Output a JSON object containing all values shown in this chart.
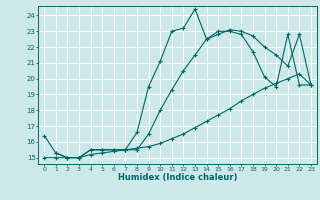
{
  "xlabel": "Humidex (Indice chaleur)",
  "bg_color": "#cce8e8",
  "grid_color": "#ffffff",
  "line_color": "#006666",
  "xlim": [
    -0.5,
    23.5
  ],
  "ylim": [
    14.6,
    24.6
  ],
  "xticks": [
    0,
    1,
    2,
    3,
    4,
    5,
    6,
    7,
    8,
    9,
    10,
    11,
    12,
    13,
    14,
    15,
    16,
    17,
    18,
    19,
    20,
    21,
    22,
    23
  ],
  "yticks": [
    15,
    16,
    17,
    18,
    19,
    20,
    21,
    22,
    23,
    24
  ],
  "line1_x": [
    0,
    1,
    2,
    3,
    4,
    5,
    6,
    7,
    8,
    9,
    10,
    11,
    12,
    13,
    14,
    15,
    16,
    17,
    18,
    19,
    20,
    21,
    22,
    23
  ],
  "line1_y": [
    16.4,
    15.3,
    15.0,
    15.0,
    15.5,
    15.5,
    15.5,
    15.5,
    16.6,
    19.5,
    21.1,
    23.0,
    23.2,
    24.4,
    22.5,
    23.0,
    23.0,
    22.8,
    21.7,
    20.1,
    19.5,
    22.8,
    19.6,
    19.6
  ],
  "line2_x": [
    0,
    1,
    2,
    3,
    4,
    5,
    6,
    7,
    8,
    9,
    10,
    11,
    12,
    13,
    14,
    15,
    16,
    17,
    18,
    19,
    20,
    21,
    22,
    23
  ],
  "line2_y": [
    15.0,
    15.0,
    15.0,
    15.0,
    15.2,
    15.3,
    15.4,
    15.5,
    15.6,
    15.7,
    15.9,
    16.2,
    16.5,
    16.9,
    17.3,
    17.7,
    18.1,
    18.6,
    19.0,
    19.4,
    19.7,
    20.0,
    20.3,
    19.6
  ],
  "line3_x": [
    1,
    2,
    3,
    4,
    5,
    6,
    7,
    8,
    9,
    10,
    11,
    12,
    13,
    14,
    15,
    16,
    17,
    18,
    19,
    20,
    21,
    22,
    23
  ],
  "line3_y": [
    15.3,
    15.0,
    15.0,
    15.5,
    15.5,
    15.5,
    15.5,
    15.5,
    16.5,
    18.0,
    19.3,
    20.5,
    21.5,
    22.5,
    22.8,
    23.1,
    23.0,
    22.7,
    22.0,
    21.5,
    20.8,
    22.8,
    19.6
  ]
}
